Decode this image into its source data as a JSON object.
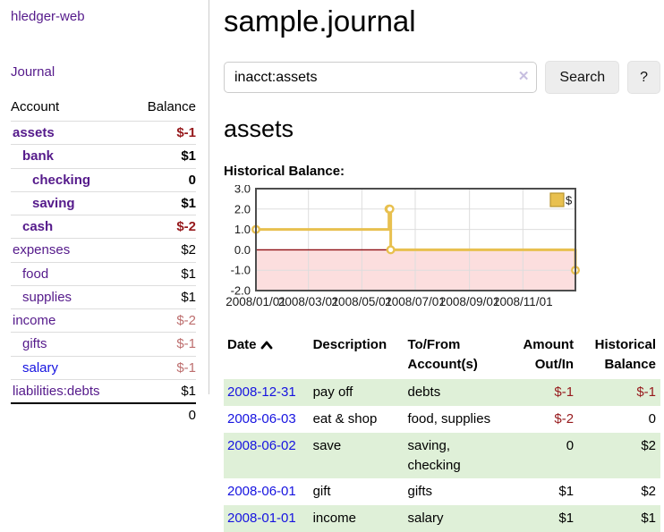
{
  "colors": {
    "link_purple": "#551A8B",
    "link_blue": "#1613E0",
    "negative_strong": "#96191C",
    "negative_muted": "#BD6E6E",
    "row_green": "#DFF0D8",
    "row_border": "#DDDDDD",
    "divider": "#CCCCCC",
    "input_border": "#CCCCCC",
    "btn_bg": "#EDEDED",
    "clear_icon": "#C7BFE0",
    "chart_line": "#E8C04F",
    "chart_line_dark": "#B8952F",
    "chart_negative_fill": "#FCDEDE",
    "chart_zero_line": "#8F0E13",
    "chart_grid": "#DDDDDD",
    "chart_border": "#4D4D4D"
  },
  "sidebar": {
    "app_title": "hledger-web",
    "nav_journal": "Journal",
    "accounts": {
      "header_account": "Account",
      "header_balance": "Balance",
      "rows": [
        {
          "account": "assets",
          "balance": "$-1",
          "indent": 1,
          "bold": true,
          "balance_style": "neg-strong"
        },
        {
          "account": "bank",
          "balance": "$1",
          "indent": 2,
          "bold": true,
          "balance_style": ""
        },
        {
          "account": "checking",
          "balance": "0",
          "indent": 3,
          "bold": true,
          "balance_style": ""
        },
        {
          "account": "saving",
          "balance": "$1",
          "indent": 3,
          "bold": true,
          "balance_style": ""
        },
        {
          "account": "cash",
          "balance": "$-2",
          "indent": 2,
          "bold": true,
          "balance_style": "neg-strong"
        },
        {
          "account": "expenses",
          "balance": "$2",
          "indent": 1,
          "bold": false,
          "balance_style": ""
        },
        {
          "account": "food",
          "balance": "$1",
          "indent": 2,
          "bold": false,
          "balance_style": ""
        },
        {
          "account": "supplies",
          "balance": "$1",
          "indent": 2,
          "bold": false,
          "balance_style": ""
        },
        {
          "account": "income",
          "balance": "$-2",
          "indent": 1,
          "bold": false,
          "balance_style": "neg-muted"
        },
        {
          "account": "gifts",
          "balance": "$-1",
          "indent": 2,
          "bold": false,
          "balance_style": "neg-muted"
        },
        {
          "account": "salary",
          "balance": "$-1",
          "indent": 2,
          "bold": false,
          "balance_style": "neg-muted",
          "link": "blue"
        },
        {
          "account": "liabilities:debts",
          "balance": "$1",
          "indent": 1,
          "bold": false,
          "balance_style": ""
        }
      ],
      "total": "0"
    }
  },
  "main": {
    "title": "sample.journal",
    "search": {
      "value": "inacct:assets",
      "clear_icon": "✕",
      "search_button": "Search",
      "help_button": "?"
    },
    "account_heading": "assets",
    "chart_label": "Historical Balance:"
  },
  "chart_data": {
    "type": "line",
    "step": true,
    "title": "Historical Balance:",
    "x_range": [
      "2008-01-01",
      "2008-12-31"
    ],
    "ylim": [
      -2,
      3
    ],
    "yticks": [
      3,
      2,
      1,
      0,
      -1,
      -2
    ],
    "xticks": [
      {
        "label": "2008/01/01",
        "date": "2008-01-01"
      },
      {
        "label": "2008/03/01",
        "date": "2008-03-01"
      },
      {
        "label": "2008/05/01",
        "date": "2008-05-01"
      },
      {
        "label": "2008/07/01",
        "date": "2008-07-01"
      },
      {
        "label": "2008/09/01",
        "date": "2008-09-01"
      },
      {
        "label": "2008/11/01",
        "date": "2008-11-01"
      }
    ],
    "legend": [
      {
        "label": "$"
      }
    ],
    "grid": true,
    "negative_region_shaded": true,
    "series": [
      {
        "name": "$",
        "points": [
          {
            "date": "2008-01-01",
            "value": 1
          },
          {
            "date": "2008-06-01",
            "value": 2
          },
          {
            "date": "2008-06-02",
            "value": 2
          },
          {
            "date": "2008-06-03",
            "value": 0
          },
          {
            "date": "2008-12-31",
            "value": -1
          }
        ]
      }
    ]
  },
  "register": {
    "headers": {
      "date": "Date",
      "description": "Description",
      "accounts": "To/From Account(s)",
      "amount": "Amount Out/In",
      "balance": "Historical Balance"
    },
    "rows": [
      {
        "date": "2008-12-31",
        "description": "pay off",
        "accounts": "debts",
        "amount": "$-1",
        "balance": "$-1",
        "amount_neg": true,
        "balance_neg": true
      },
      {
        "date": "2008-06-03",
        "description": "eat & shop",
        "accounts": "food, supplies",
        "amount": "$-2",
        "balance": "0",
        "amount_neg": true,
        "balance_neg": false
      },
      {
        "date": "2008-06-02",
        "description": "save",
        "accounts": "saving, checking",
        "amount": "0",
        "balance": "$2",
        "amount_neg": false,
        "balance_neg": false
      },
      {
        "date": "2008-06-01",
        "description": "gift",
        "accounts": "gifts",
        "amount": "$1",
        "balance": "$2",
        "amount_neg": false,
        "balance_neg": false
      },
      {
        "date": "2008-01-01",
        "description": "income",
        "accounts": "salary",
        "amount": "$1",
        "balance": "$1",
        "amount_neg": false,
        "balance_neg": false
      }
    ]
  }
}
